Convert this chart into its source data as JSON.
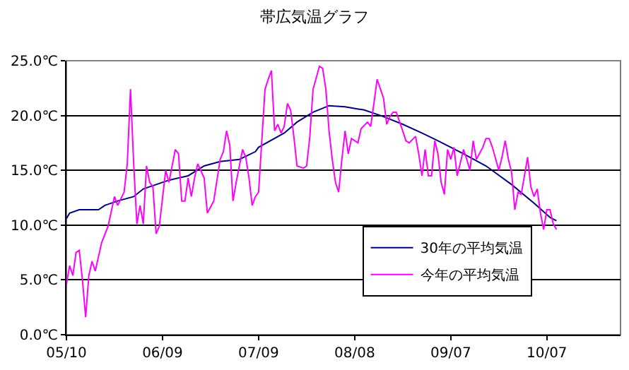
{
  "chart_data": {
    "type": "line",
    "title": "帯広気温グラフ",
    "xlim": [
      "--05-10",
      "--10-30"
    ],
    "xticks": [
      {
        "value": "--05-10",
        "label": "05/10"
      },
      {
        "value": "--06-09",
        "label": "06/09"
      },
      {
        "value": "--07-09",
        "label": "07/09"
      },
      {
        "value": "--08-08",
        "label": "08/08"
      },
      {
        "value": "--09-07",
        "label": "09/07"
      },
      {
        "value": "--10-07",
        "label": "10/07"
      }
    ],
    "ylim": [
      0,
      25
    ],
    "yticks": [
      {
        "value": 0,
        "label": "0.0℃"
      },
      {
        "value": 5,
        "label": "5.0℃"
      },
      {
        "value": 10,
        "label": "10.0℃"
      },
      {
        "value": 15,
        "label": "15.0℃"
      },
      {
        "value": 20,
        "label": "20.0℃"
      },
      {
        "value": 25,
        "label": "25.0℃"
      }
    ],
    "grid": "y",
    "legend": "bottom right",
    "marker": "none",
    "line_style": "solid",
    "series": [
      {
        "name": "30年の平均気温",
        "color": "#000080",
        "x": [
          "--05-10",
          "--05-11",
          "--05-14",
          "--05-20",
          "--05-22",
          "--05-26",
          "--05-31",
          "--06-03",
          "--06-07",
          "--06-11",
          "--06-17",
          "--06-22",
          "--06-27",
          "--07-03",
          "--07-08",
          "--07-09",
          "--07-17",
          "--07-21",
          "--07-26",
          "--07-31",
          "--08-05",
          "--08-11",
          "--08-17",
          "--08-23",
          "--08-29",
          "--09-03",
          "--09-11",
          "--09-18",
          "--09-26",
          "--10-03",
          "--10-08",
          "--10-10"
        ],
        "values": [
          10.6,
          11.1,
          11.4,
          11.4,
          11.8,
          12.2,
          12.6,
          13.3,
          13.7,
          14.1,
          14.5,
          15.4,
          15.8,
          16.0,
          16.7,
          17.1,
          18.4,
          19.4,
          20.3,
          20.9,
          20.8,
          20.5,
          19.9,
          19.2,
          18.4,
          17.7,
          16.5,
          15.4,
          13.7,
          12.0,
          10.7,
          10.4
        ]
      },
      {
        "name": "今年の平均気温",
        "color": "#ff00ff",
        "x": [
          "--05-10",
          "--05-11",
          "--05-12",
          "--05-13",
          "--05-14",
          "--05-15",
          "--05-16",
          "--05-17",
          "--05-18",
          "--05-19",
          "--05-21",
          "--05-23",
          "--05-25",
          "--05-26",
          "--05-28",
          "--05-29",
          "--05-30",
          "--05-31",
          "--06-01",
          "--06-02",
          "--06-03",
          "--06-04",
          "--06-05",
          "--06-06",
          "--06-07",
          "--06-08",
          "--06-10",
          "--06-11",
          "--06-13",
          "--06-14",
          "--06-15",
          "--06-16",
          "--06-17",
          "--06-18",
          "--06-19",
          "--06-20",
          "--06-22",
          "--06-23",
          "--06-25",
          "--06-27",
          "--06-28",
          "--06-29",
          "--06-30",
          "--07-01",
          "--07-02",
          "--07-04",
          "--07-05",
          "--07-06",
          "--07-07",
          "--07-08",
          "--07-09",
          "--07-10",
          "--07-11",
          "--07-12",
          "--07-13",
          "--07-14",
          "--07-15",
          "--07-16",
          "--07-17",
          "--07-18",
          "--07-19",
          "--07-20",
          "--07-21",
          "--07-23",
          "--07-24",
          "--07-25",
          "--07-26",
          "--07-28",
          "--07-29",
          "--07-30",
          "--07-31",
          "--08-01",
          "--08-02",
          "--08-03",
          "--08-04",
          "--08-05",
          "--08-06",
          "--08-07",
          "--08-09",
          "--08-10",
          "--08-12",
          "--08-13",
          "--08-14",
          "--08-15",
          "--08-17",
          "--08-18",
          "--08-19",
          "--08-20",
          "--08-21",
          "--08-23",
          "--08-24",
          "--08-25",
          "--08-27",
          "--08-28",
          "--08-29",
          "--08-30",
          "--08-31",
          "--09-01",
          "--09-02",
          "--09-03",
          "--09-04",
          "--09-05",
          "--09-06",
          "--09-07",
          "--09-08",
          "--09-09",
          "--09-11",
          "--09-12",
          "--09-13",
          "--09-14",
          "--09-15",
          "--09-17",
          "--09-18",
          "--09-19",
          "--09-20",
          "--09-22",
          "--09-23",
          "--09-24",
          "--09-25",
          "--09-26",
          "--09-27",
          "--09-28",
          "--09-29",
          "--10-01",
          "--10-02",
          "--10-03",
          "--10-04",
          "--10-05",
          "--10-06",
          "--10-07",
          "--10-08",
          "--10-09",
          "--10-10"
        ],
        "values": [
          4.6,
          6.3,
          5.4,
          7.5,
          7.7,
          5.0,
          1.6,
          5.4,
          6.7,
          5.8,
          8.4,
          9.9,
          12.6,
          11.8,
          13.0,
          15.6,
          22.4,
          15.6,
          10.1,
          11.8,
          10.1,
          15.4,
          13.9,
          13.5,
          9.2,
          9.9,
          15.0,
          13.9,
          16.9,
          16.5,
          12.2,
          12.2,
          14.3,
          12.6,
          14.3,
          15.6,
          14.3,
          11.1,
          12.2,
          16.0,
          16.7,
          18.6,
          17.3,
          12.2,
          13.9,
          16.9,
          16.2,
          14.3,
          11.8,
          12.6,
          13.0,
          17.7,
          22.4,
          23.3,
          24.1,
          18.6,
          19.2,
          18.4,
          19.0,
          21.1,
          20.5,
          18.1,
          15.4,
          15.2,
          15.4,
          18.1,
          22.4,
          24.5,
          24.3,
          22.4,
          18.6,
          16.0,
          13.9,
          13.0,
          16.0,
          18.6,
          16.5,
          17.9,
          17.5,
          18.8,
          19.4,
          19.0,
          21.1,
          23.3,
          21.6,
          19.2,
          19.9,
          20.3,
          20.3,
          18.6,
          17.7,
          17.5,
          18.1,
          16.5,
          14.5,
          16.9,
          14.5,
          14.5,
          17.7,
          16.5,
          13.9,
          12.8,
          16.9,
          16.0,
          17.1,
          14.5,
          16.9,
          16.0,
          15.0,
          17.7,
          16.0,
          17.1,
          17.9,
          17.9,
          17.1,
          15.0,
          16.2,
          17.7,
          16.0,
          14.8,
          11.4,
          13.0,
          12.8,
          16.2,
          13.5,
          12.6,
          13.3,
          11.1,
          9.6,
          11.4,
          11.4,
          10.1,
          9.6
        ]
      }
    ]
  }
}
